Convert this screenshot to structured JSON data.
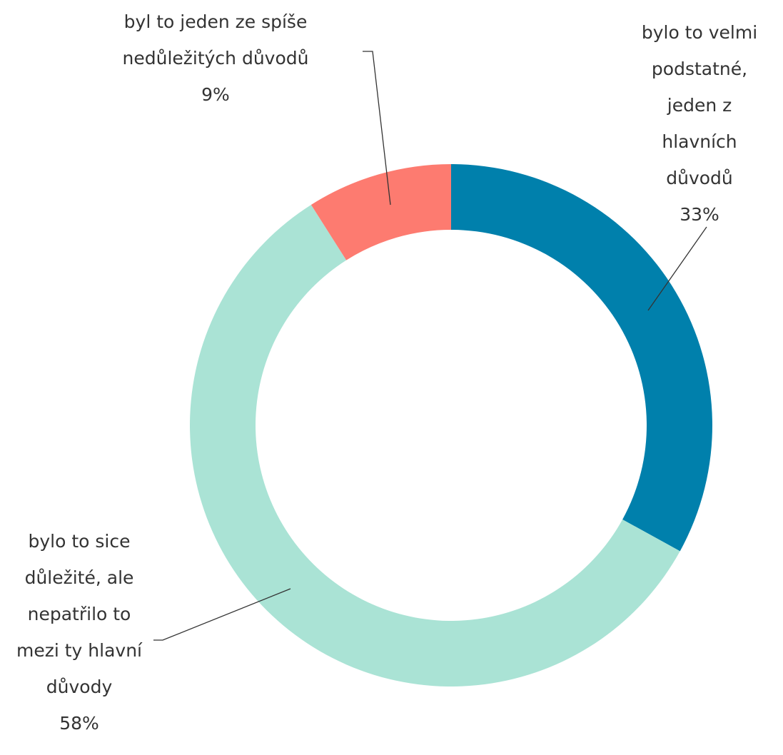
{
  "chart_data": {
    "type": "donut",
    "categories": [
      "bylo to velmi podstatné, jeden z hlavních důvodů",
      "bylo to sice důležité, ale nepatřilo to mezi ty hlavní důvody",
      "byl to jeden ze spíše nedůležitých důvodů"
    ],
    "values": [
      33,
      58,
      9
    ],
    "value_labels": [
      "33%",
      "58%",
      "9%"
    ],
    "colors": [
      "#0080ac",
      "#aae3d5",
      "#fd7b70"
    ]
  }
}
